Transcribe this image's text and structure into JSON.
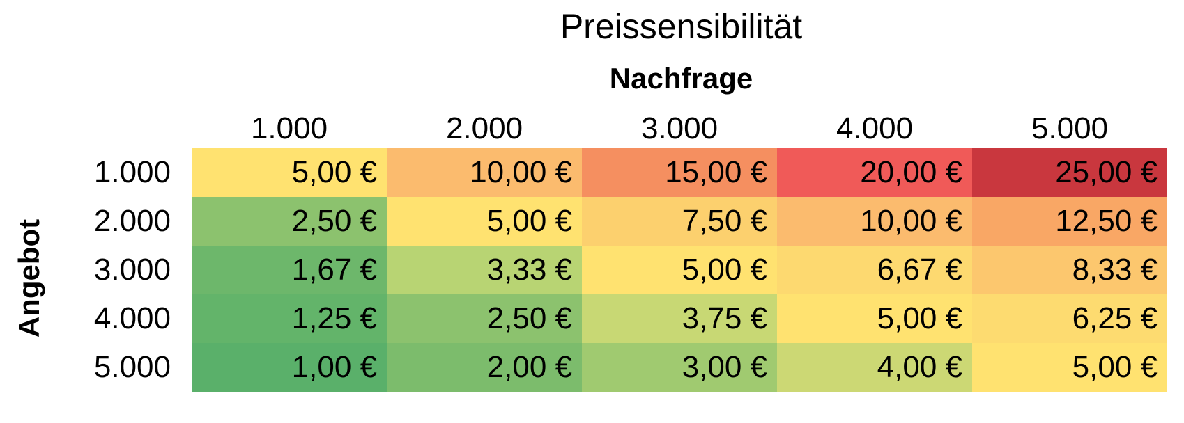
{
  "chart_data": {
    "type": "heatmap",
    "title": "Preissensibilität",
    "xlabel": "Nachfrage",
    "ylabel": "Angebot",
    "x_categories": [
      "1.000",
      "2.000",
      "3.000",
      "4.000",
      "5.000"
    ],
    "y_categories": [
      "1.000",
      "2.000",
      "3.000",
      "4.000",
      "5.000"
    ],
    "values": [
      [
        5.0,
        10.0,
        15.0,
        20.0,
        25.0
      ],
      [
        2.5,
        5.0,
        7.5,
        10.0,
        12.5
      ],
      [
        1.67,
        3.33,
        5.0,
        6.67,
        8.33
      ],
      [
        1.25,
        2.5,
        3.75,
        5.0,
        6.25
      ],
      [
        1.0,
        2.0,
        3.0,
        4.0,
        5.0
      ]
    ],
    "cell_labels": [
      [
        "5,00 €",
        "10,00 €",
        "15,00 €",
        "20,00 €",
        "25,00 €"
      ],
      [
        "2,50 €",
        "5,00 €",
        "7,50 €",
        "10,00 €",
        "12,50 €"
      ],
      [
        "1,67 €",
        "3,33 €",
        "5,00 €",
        "6,67 €",
        "8,33 €"
      ],
      [
        "1,25 €",
        "2,50 €",
        "3,75 €",
        "5,00 €",
        "6,25 €"
      ],
      [
        "1,00 €",
        "2,00 €",
        "3,00 €",
        "4,00 €",
        "5,00 €"
      ]
    ],
    "colors": [
      [
        "#FFE270",
        "#FBBB6E",
        "#F58F60",
        "#F05A58",
        "#C9373E"
      ],
      [
        "#8CC26E",
        "#FFE270",
        "#FCD06E",
        "#FBBB6E",
        "#F9A765"
      ],
      [
        "#6DB76B",
        "#B8D473",
        "#FFE270",
        "#FDD970",
        "#FCC76E"
      ],
      [
        "#63B46A",
        "#8CC26E",
        "#C8D874",
        "#FFE270",
        "#FDDB70"
      ],
      [
        "#5AB06A",
        "#7CBC6C",
        "#A0CA70",
        "#CCD874",
        "#FFE270"
      ]
    ]
  }
}
